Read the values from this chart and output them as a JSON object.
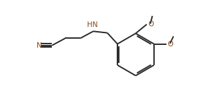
{
  "bg_color": "#ffffff",
  "bond_color": "#2a2a2a",
  "heteroatom_color": "#8B4513",
  "line_width": 1.4,
  "fig_width": 2.91,
  "fig_height": 1.49,
  "dpi": 100,
  "xlim": [
    0,
    10.0
  ],
  "ylim": [
    0,
    5.0
  ]
}
